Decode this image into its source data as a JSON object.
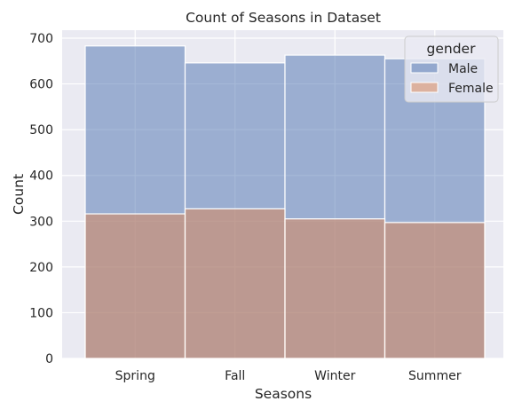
{
  "chart_data": {
    "type": "bar",
    "title": "Count of Seasons in Dataset",
    "xlabel": "Seasons",
    "ylabel": "Count",
    "categories": [
      "Spring",
      "Fall",
      "Winter",
      "Summer"
    ],
    "series": [
      {
        "name": "Male",
        "values": [
          683,
          646,
          663,
          655
        ],
        "color": "#4c72b0"
      },
      {
        "name": "Female",
        "values": [
          316,
          327,
          305,
          297
        ],
        "color": "#dd8452"
      }
    ],
    "ylim": [
      0,
      720
    ],
    "yticks": [
      0,
      100,
      200,
      300,
      400,
      500,
      600,
      700
    ],
    "grid": true,
    "legend": {
      "title": "gender",
      "placement": "top-right"
    },
    "colors": {
      "background": "#eaeaf2",
      "grid": "#ffffff",
      "bar_edge": "#ffffff"
    }
  }
}
